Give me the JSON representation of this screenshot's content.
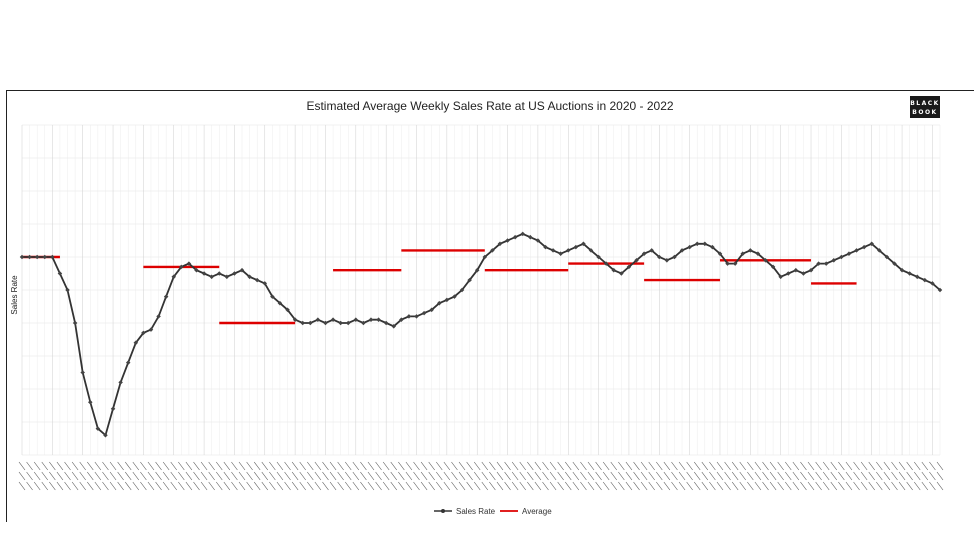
{
  "chart_data": {
    "type": "line",
    "title": "Estimated Average Weekly Sales Rate at US Auctions in 2020 - 2022",
    "ylabel": "Sales Rate",
    "xlabel": "",
    "ylim": [
      0,
      100
    ],
    "grid": true,
    "legend_position": "bottom-center",
    "logo": "BLACK BOOK",
    "series": [
      {
        "name": "Sales Rate",
        "color": "#333333",
        "marker": "diamond",
        "values": [
          60,
          60,
          60,
          60,
          60,
          55,
          50,
          40,
          25,
          16,
          8,
          6,
          14,
          22,
          28,
          34,
          37,
          38,
          42,
          48,
          54,
          57,
          58,
          56,
          55,
          54,
          55,
          54,
          55,
          56,
          54,
          53,
          52,
          48,
          46,
          44,
          41,
          40,
          40,
          41,
          40,
          41,
          40,
          40,
          41,
          40,
          41,
          41,
          40,
          39,
          41,
          42,
          42,
          43,
          44,
          46,
          47,
          48,
          50,
          53,
          56,
          60,
          62,
          64,
          65,
          66,
          67,
          66,
          65,
          63,
          62,
          61,
          62,
          63,
          64,
          62,
          60,
          58,
          56,
          55,
          57,
          59,
          61,
          62,
          60,
          59,
          60,
          62,
          63,
          64,
          64,
          63,
          61,
          58,
          58,
          61,
          62,
          61,
          59,
          57,
          54,
          55,
          56,
          55,
          56,
          58,
          58,
          59,
          60,
          61,
          62,
          63,
          64,
          62,
          60,
          58,
          56,
          55,
          54,
          53,
          52,
          50
        ]
      },
      {
        "name": "Average",
        "color": "#dd0000",
        "segments": [
          {
            "from": 0,
            "to": 5,
            "value": 60
          },
          {
            "from": 16,
            "to": 26,
            "value": 57
          },
          {
            "from": 26,
            "to": 36,
            "value": 40
          },
          {
            "from": 41,
            "to": 50,
            "value": 56
          },
          {
            "from": 50,
            "to": 61,
            "value": 62
          },
          {
            "from": 61,
            "to": 72,
            "value": 56
          },
          {
            "from": 72,
            "to": 82,
            "value": 58
          },
          {
            "from": 82,
            "to": 92,
            "value": 53
          },
          {
            "from": 92,
            "to": 104,
            "value": 59
          },
          {
            "from": 104,
            "to": 110,
            "value": 52
          }
        ]
      }
    ]
  }
}
